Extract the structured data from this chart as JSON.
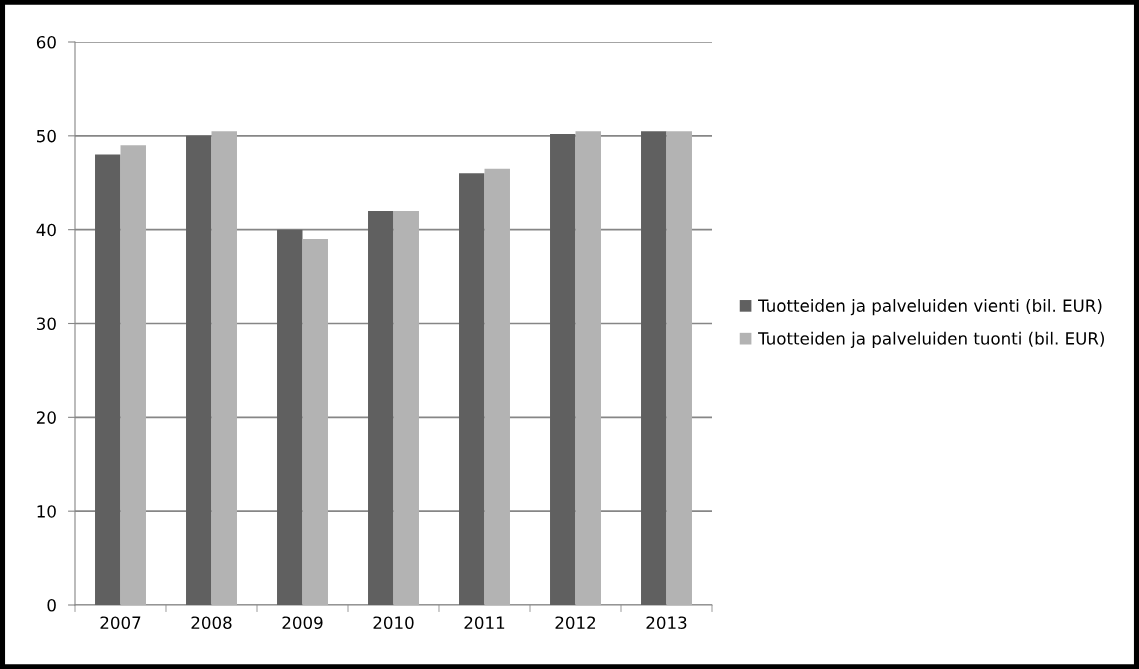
{
  "chart_data": {
    "type": "bar",
    "categories": [
      "2007",
      "2008",
      "2009",
      "2010",
      "2011",
      "2012",
      "2013"
    ],
    "series": [
      {
        "name": "Tuotteiden ja palveluiden vienti (bil. EUR)",
        "color": "#606060",
        "values": [
          48.0,
          50.0,
          40.0,
          42.0,
          46.0,
          50.2,
          50.5
        ]
      },
      {
        "name": "Tuotteiden ja palveluiden tuonti (bil. EUR)",
        "color": "#b3b3b3",
        "values": [
          49.0,
          50.5,
          39.0,
          42.0,
          46.5,
          50.5,
          50.5
        ]
      }
    ],
    "ylim": [
      0,
      60
    ],
    "yticks": [
      0,
      10,
      20,
      30,
      40,
      50,
      60
    ],
    "grid": "y",
    "legend": "right"
  }
}
